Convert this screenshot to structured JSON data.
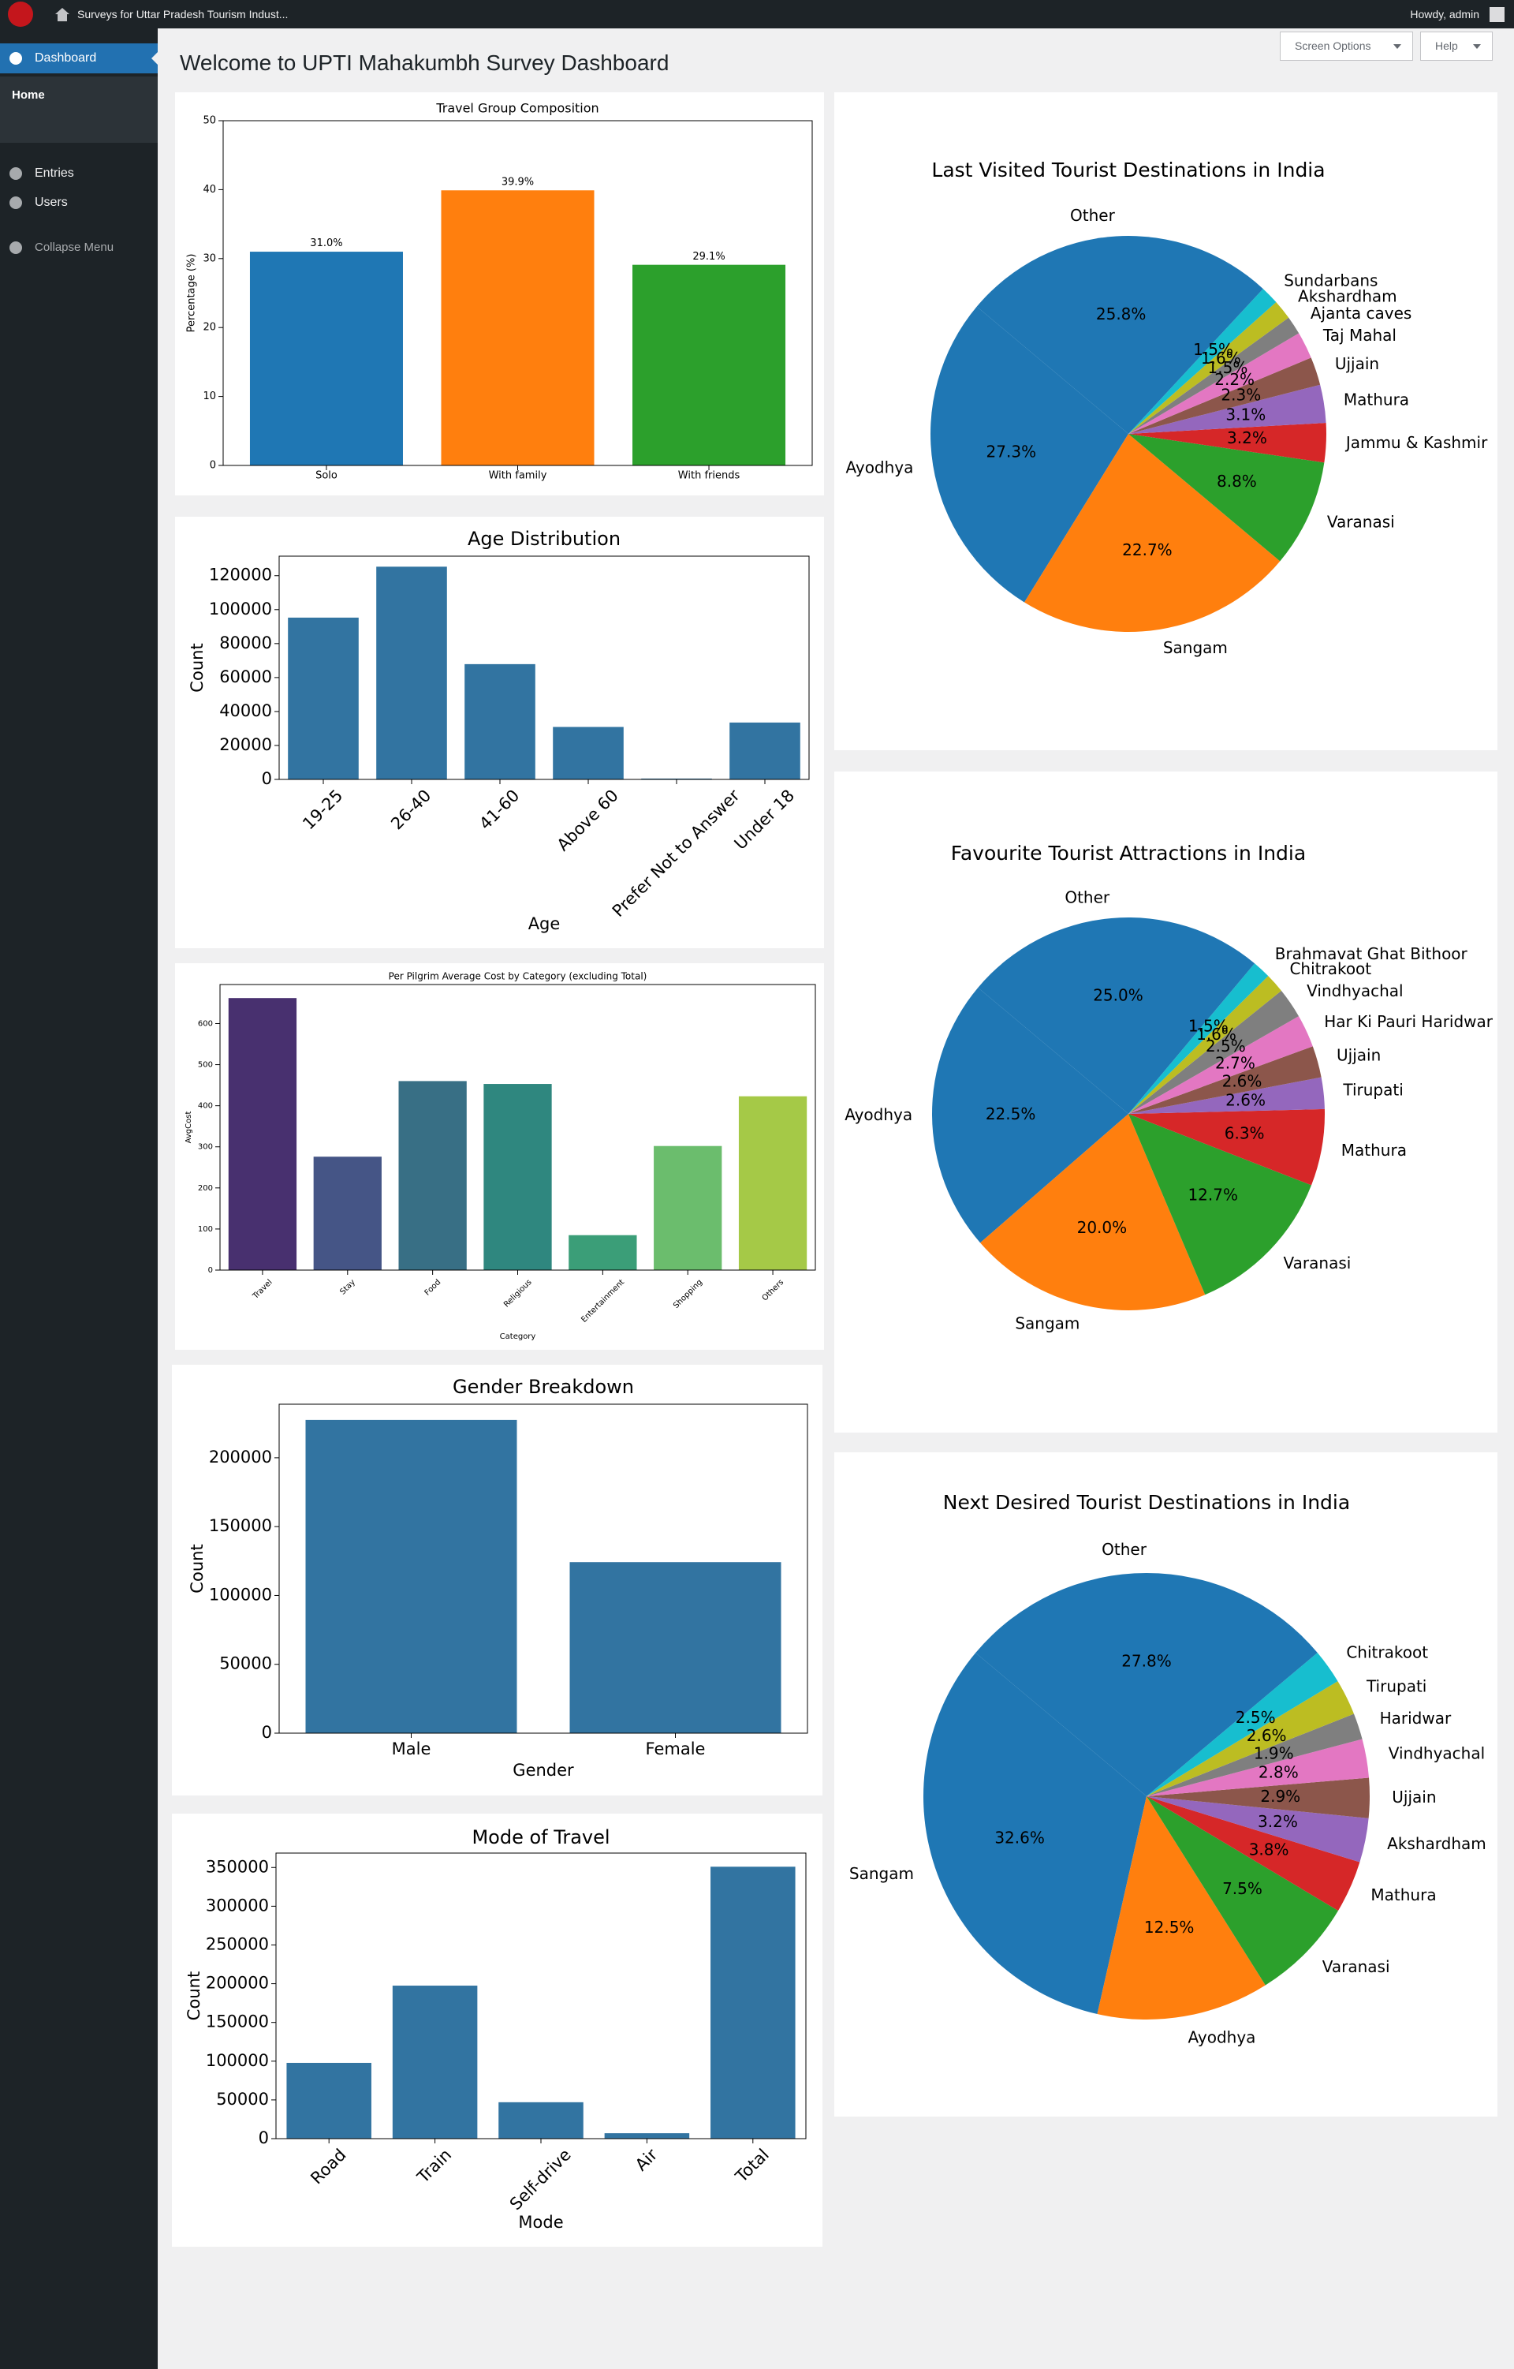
{
  "admin_bar": {
    "site_title": "Surveys for Uttar Pradesh Tourism Indust...",
    "greeting": "Howdy, admin"
  },
  "sidebar": {
    "items": [
      "Dashboard",
      "Home",
      "Entries",
      "Users",
      "Collapse Menu"
    ]
  },
  "page": {
    "title": "Welcome to UPTI Mahakumbh Survey Dashboard",
    "buttons": [
      "Screen Options",
      "Help"
    ]
  },
  "chart_data": [
    {
      "type": "bar",
      "title": "Travel Group Composition",
      "ylabel": "Percentage (%)",
      "categories": [
        "Solo",
        "With family",
        "With friends"
      ],
      "values": [
        31.0,
        39.9,
        29.1
      ],
      "value_labels": [
        "31.0%",
        "39.9%",
        "29.1%"
      ],
      "colors": [
        "#1f77b4",
        "#ff7f0e",
        "#2ca02c"
      ],
      "ylim": [
        0,
        50
      ],
      "yticks": [
        0,
        10,
        20,
        30,
        40,
        50
      ]
    },
    {
      "type": "bar",
      "title": "Age Distribution",
      "xlabel": "Age",
      "ylabel": "Count",
      "categories": [
        "19-25",
        "26-40",
        "41-60",
        "Above 60",
        "Prefer Not to Answer",
        "Under 18"
      ],
      "values": [
        95300,
        125300,
        67900,
        30900,
        500,
        33500
      ],
      "color": "#3274a1",
      "ylim": [
        0,
        131500
      ],
      "yticks": [
        0,
        20000,
        40000,
        60000,
        80000,
        100000,
        120000
      ]
    },
    {
      "type": "bar",
      "title": "Per Pilgrim Average Cost by Category (excluding Total)",
      "xlabel": "Category",
      "ylabel": "AvgCost",
      "categories": [
        "Travel",
        "Stay",
        "Food",
        "Religious",
        "Entertainment",
        "Shopping",
        "Others"
      ],
      "values": [
        662,
        276,
        460,
        453,
        85,
        302,
        423
      ],
      "colors": [
        "#48306f",
        "#455586",
        "#386f85",
        "#2f877f",
        "#3b9e78",
        "#6bbd6d",
        "#a5c947"
      ],
      "ylim": [
        0,
        695
      ],
      "yticks": [
        0,
        100,
        200,
        300,
        400,
        500,
        600
      ]
    },
    {
      "type": "bar",
      "title": "Gender Breakdown",
      "xlabel": "Gender",
      "ylabel": "Count",
      "categories": [
        "Male",
        "Female"
      ],
      "values": [
        227500,
        124200
      ],
      "color": "#3274a1",
      "ylim": [
        0,
        238900
      ],
      "yticks": [
        0,
        50000,
        100000,
        150000,
        200000
      ]
    },
    {
      "type": "bar",
      "title": "Mode of Travel",
      "xlabel": "Mode",
      "ylabel": "Count",
      "categories": [
        "Road",
        "Train",
        "Self-drive",
        "Air",
        "Total"
      ],
      "values": [
        97800,
        197500,
        47000,
        7000,
        351000
      ],
      "color": "#3274a1",
      "ylim": [
        0,
        368600
      ],
      "yticks": [
        0,
        50000,
        100000,
        150000,
        200000,
        250000,
        300000,
        350000
      ]
    },
    {
      "type": "pie",
      "title": "Last Visited Tourist Destinations in India",
      "labels": [
        "Ayodhya",
        "Sangam",
        "Varanasi",
        "Jammu & Kashmir",
        "Mathura",
        "Ujjain",
        "Taj Mahal",
        "Ajanta caves",
        "Akshardham",
        "Sundarbans",
        "Other"
      ],
      "values": [
        27.3,
        22.7,
        8.8,
        3.2,
        3.1,
        2.3,
        2.2,
        1.5,
        1.6,
        1.5,
        25.8
      ],
      "value_labels": [
        "27.3%",
        "22.7%",
        "8.8%",
        "3.2%",
        "3.1%",
        "2.3%",
        "2.2%",
        "1.5%",
        "1.6%",
        "1.5%",
        "25.8%"
      ],
      "colors": [
        "#1f77b4",
        "#ff7f0e",
        "#2ca02c",
        "#d62728",
        "#9467bd",
        "#8c564b",
        "#e377c2",
        "#7f7f7f",
        "#bcbd22",
        "#17becf",
        "#1f77b4"
      ]
    },
    {
      "type": "pie",
      "title": "Favourite Tourist Attractions in India",
      "labels": [
        "Ayodhya",
        "Sangam",
        "Varanasi",
        "Mathura",
        "Tirupati",
        "Ujjain",
        "Har Ki Pauri Haridwar",
        "Vindhyachal",
        "Chitrakoot",
        "Brahmavat Ghat Bithoor",
        "Other"
      ],
      "values": [
        22.5,
        20.0,
        12.7,
        6.3,
        2.6,
        2.6,
        2.7,
        2.5,
        1.6,
        1.5,
        25.0
      ],
      "value_labels": [
        "22.5%",
        "20.0%",
        "12.7%",
        "6.3%",
        "2.6%",
        "2.6%",
        "2.7%",
        "2.5%",
        "1.6%",
        "1.5%",
        "25.0%"
      ],
      "colors": [
        "#1f77b4",
        "#ff7f0e",
        "#2ca02c",
        "#d62728",
        "#9467bd",
        "#8c564b",
        "#e377c2",
        "#7f7f7f",
        "#bcbd22",
        "#17becf",
        "#1f77b4"
      ]
    },
    {
      "type": "pie",
      "title": "Next Desired Tourist Destinations in India",
      "labels": [
        "Sangam",
        "Ayodhya",
        "Varanasi",
        "Mathura",
        "Akshardham",
        "Ujjain",
        "Vindhyachal",
        "Haridwar",
        "Tirupati",
        "Chitrakoot",
        "Other"
      ],
      "values": [
        32.6,
        12.5,
        7.5,
        3.8,
        3.2,
        2.9,
        2.8,
        1.9,
        2.6,
        2.5,
        27.8
      ],
      "value_labels": [
        "32.6%",
        "12.5%",
        "7.5%",
        "3.8%",
        "3.2%",
        "2.9%",
        "2.8%",
        "1.9%",
        "2.6%",
        "2.5%",
        "27.8%"
      ],
      "colors": [
        "#1f77b4",
        "#ff7f0e",
        "#2ca02c",
        "#d62728",
        "#9467bd",
        "#8c564b",
        "#e377c2",
        "#7f7f7f",
        "#bcbd22",
        "#17becf",
        "#1f77b4"
      ]
    }
  ]
}
